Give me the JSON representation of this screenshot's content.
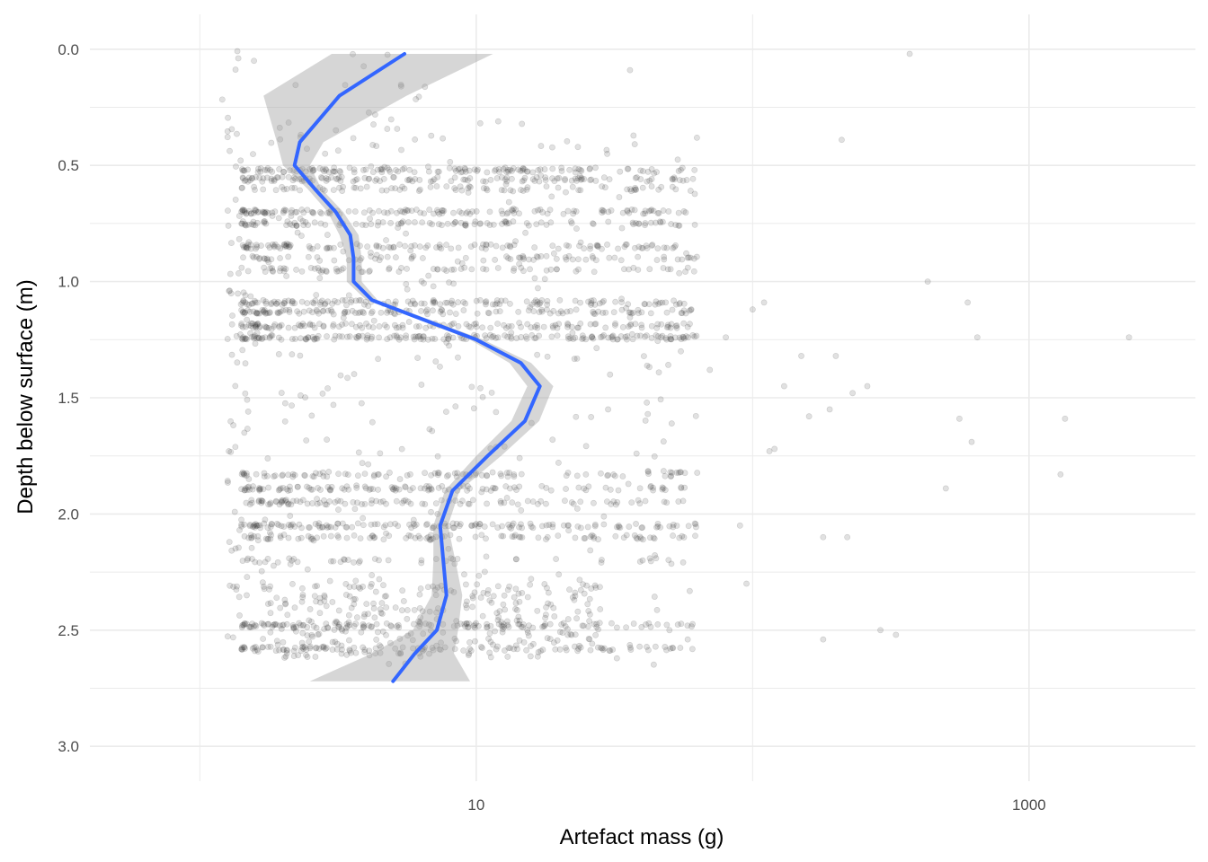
{
  "chart_data": {
    "type": "scatter",
    "title": "",
    "xlabel": "Artefact mass (g)",
    "ylabel": "Depth below surface (m)",
    "x_scale": "log10",
    "xlim": [
      0.4,
      4000
    ],
    "ylim": [
      3.15,
      -0.15
    ],
    "y_reversed": true,
    "x_ticks": [
      10,
      1000
    ],
    "x_tick_labels": [
      "10",
      "1000"
    ],
    "y_ticks": [
      0.0,
      0.5,
      1.0,
      1.5,
      2.0,
      2.5,
      3.0
    ],
    "y_tick_labels": [
      "0.0",
      "0.5",
      "1.0",
      "1.5",
      "2.0",
      "2.5",
      "3.0"
    ],
    "grid": true,
    "legend": "none",
    "colors": {
      "points": "#333333",
      "smooth_line": "#3366FF",
      "ribbon": "#999999",
      "grid": "#ebebeb"
    },
    "point_opacity": 0.15,
    "series": [
      {
        "kind": "smooth",
        "x": [
          5.5,
          3.2,
          2.3,
          2.2,
          2.6,
          3.1,
          3.5,
          3.6,
          3.6,
          4.2,
          6.0,
          10.0,
          14.5,
          17.0,
          15.0,
          11.0,
          8.2,
          7.4,
          7.6,
          7.8,
          7.2,
          6.0,
          5.0
        ],
        "y": [
          0.02,
          0.2,
          0.4,
          0.5,
          0.6,
          0.7,
          0.8,
          0.9,
          1.0,
          1.08,
          1.15,
          1.25,
          1.35,
          1.45,
          1.6,
          1.75,
          1.9,
          2.05,
          2.2,
          2.35,
          2.5,
          2.6,
          2.72
        ],
        "lower": [
          3.0,
          1.7,
          1.9,
          2.0,
          2.45,
          2.9,
          3.2,
          3.4,
          3.4,
          4.0,
          5.8,
          9.5,
          13.2,
          15.3,
          13.4,
          10.0,
          7.7,
          7.0,
          7.0,
          6.9,
          5.9,
          4.2,
          2.5
        ],
        "upper": [
          11.5,
          5.6,
          2.8,
          2.5,
          2.75,
          3.3,
          3.75,
          3.85,
          3.85,
          4.4,
          6.3,
          10.6,
          15.8,
          19.0,
          16.9,
          12.3,
          8.7,
          7.9,
          8.4,
          8.9,
          8.6,
          8.3,
          9.5
        ]
      }
    ]
  }
}
